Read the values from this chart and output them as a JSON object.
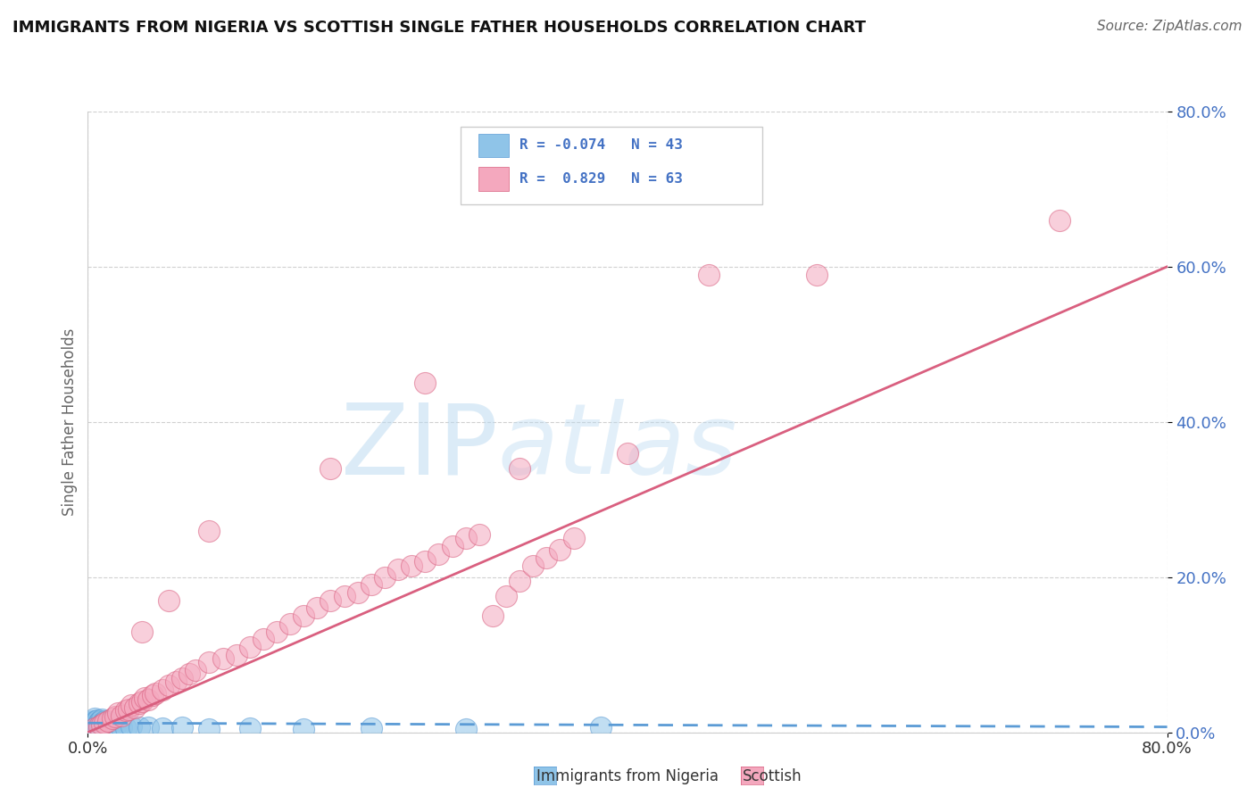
{
  "title": "IMMIGRANTS FROM NIGERIA VS SCOTTISH SINGLE FATHER HOUSEHOLDS CORRELATION CHART",
  "source": "Source: ZipAtlas.com",
  "ylabel": "Single Father Households",
  "xlabel_blue": "Immigrants from Nigeria",
  "xlabel_pink": "Scottish",
  "watermark_zip": "ZIP",
  "watermark_atlas": "atlas",
  "legend_blue_R": "R = -0.074",
  "legend_blue_N": "N = 43",
  "legend_pink_R": "R =  0.829",
  "legend_pink_N": "N = 63",
  "color_blue": "#8fc4e8",
  "color_pink": "#f4a8be",
  "color_blue_dark": "#5b9bd5",
  "color_pink_dark": "#d95f7f",
  "color_legend_text": "#4472c4",
  "xmin": 0.0,
  "xmax": 0.8,
  "ymin": 0.0,
  "ymax": 0.8,
  "blue_scatter_x": [
    0.001,
    0.002,
    0.002,
    0.003,
    0.003,
    0.004,
    0.004,
    0.005,
    0.005,
    0.006,
    0.006,
    0.007,
    0.007,
    0.008,
    0.008,
    0.009,
    0.009,
    0.01,
    0.01,
    0.011,
    0.011,
    0.012,
    0.013,
    0.014,
    0.015,
    0.016,
    0.017,
    0.018,
    0.02,
    0.022,
    0.025,
    0.028,
    0.032,
    0.038,
    0.045,
    0.055,
    0.07,
    0.09,
    0.12,
    0.16,
    0.21,
    0.28,
    0.38
  ],
  "blue_scatter_y": [
    0.005,
    0.008,
    0.012,
    0.006,
    0.01,
    0.015,
    0.009,
    0.012,
    0.018,
    0.007,
    0.014,
    0.01,
    0.016,
    0.008,
    0.013,
    0.011,
    0.015,
    0.009,
    0.017,
    0.006,
    0.012,
    0.014,
    0.008,
    0.011,
    0.007,
    0.013,
    0.009,
    0.01,
    0.008,
    0.006,
    0.007,
    0.005,
    0.008,
    0.006,
    0.007,
    0.005,
    0.006,
    0.004,
    0.005,
    0.004,
    0.005,
    0.004,
    0.006
  ],
  "pink_scatter_x": [
    0.005,
    0.008,
    0.01,
    0.012,
    0.015,
    0.018,
    0.02,
    0.022,
    0.025,
    0.028,
    0.03,
    0.032,
    0.035,
    0.038,
    0.04,
    0.042,
    0.045,
    0.048,
    0.05,
    0.055,
    0.06,
    0.065,
    0.07,
    0.075,
    0.08,
    0.09,
    0.1,
    0.11,
    0.12,
    0.13,
    0.14,
    0.15,
    0.16,
    0.17,
    0.18,
    0.19,
    0.2,
    0.21,
    0.22,
    0.23,
    0.24,
    0.25,
    0.26,
    0.27,
    0.28,
    0.29,
    0.3,
    0.31,
    0.32,
    0.33,
    0.34,
    0.35,
    0.36,
    0.04,
    0.06,
    0.09,
    0.18,
    0.25,
    0.32,
    0.4,
    0.46,
    0.54,
    0.72
  ],
  "pink_scatter_y": [
    0.005,
    0.008,
    0.01,
    0.012,
    0.015,
    0.018,
    0.02,
    0.025,
    0.022,
    0.028,
    0.03,
    0.035,
    0.032,
    0.038,
    0.04,
    0.045,
    0.042,
    0.048,
    0.05,
    0.055,
    0.06,
    0.065,
    0.07,
    0.075,
    0.08,
    0.09,
    0.095,
    0.1,
    0.11,
    0.12,
    0.13,
    0.14,
    0.15,
    0.16,
    0.17,
    0.175,
    0.18,
    0.19,
    0.2,
    0.21,
    0.215,
    0.22,
    0.23,
    0.24,
    0.25,
    0.255,
    0.15,
    0.175,
    0.195,
    0.215,
    0.225,
    0.235,
    0.25,
    0.13,
    0.17,
    0.26,
    0.34,
    0.45,
    0.34,
    0.36,
    0.59,
    0.59,
    0.66
  ],
  "blue_line_x": [
    0.0,
    0.8
  ],
  "blue_line_y": [
    0.012,
    0.007
  ],
  "pink_line_x": [
    0.0,
    0.8
  ],
  "pink_line_y": [
    0.0,
    0.6
  ],
  "ytick_labels": [
    "0.0%",
    "20.0%",
    "40.0%",
    "60.0%",
    "80.0%"
  ],
  "ytick_values": [
    0.0,
    0.2,
    0.4,
    0.6,
    0.8
  ],
  "xtick_labels": [
    "0.0%",
    "80.0%"
  ],
  "xtick_values": [
    0.0,
    0.8
  ]
}
